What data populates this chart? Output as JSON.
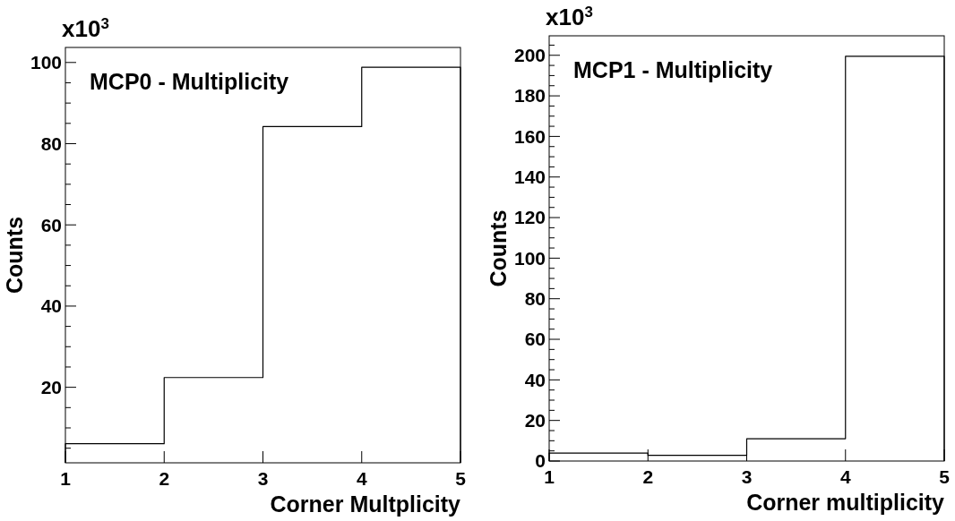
{
  "chart_data": [
    {
      "type": "histogram",
      "title": "MCP0 - Multiplicity",
      "xlabel": "Corner Multplicity",
      "ylabel": "Counts",
      "annotations": [
        "x10$^{3}$"
      ],
      "color": "#000000",
      "grid": false,
      "bins": [
        1,
        2,
        3,
        4,
        5
      ],
      "values": [
        6.1,
        22.4,
        84.2,
        98.8
      ],
      "xlim": [
        1,
        5
      ],
      "xticks": [
        1,
        2,
        3,
        4,
        5
      ],
      "ylim": [
        1.4,
        103.7
      ],
      "yticks": [
        {
          "value": 5,
          "label": null
        },
        {
          "value": 10,
          "label": null
        },
        {
          "value": 15,
          "label": null
        },
        20,
        {
          "value": 25,
          "label": null
        },
        {
          "value": 30,
          "label": null
        },
        {
          "value": 35,
          "label": null
        },
        40,
        {
          "value": 45,
          "label": null
        },
        {
          "value": 50,
          "label": null
        },
        {
          "value": 55,
          "label": null
        },
        60,
        {
          "value": 65,
          "label": null
        },
        {
          "value": 70,
          "label": null
        },
        {
          "value": 75,
          "label": null
        },
        80,
        {
          "value": 85,
          "label": null
        },
        {
          "value": 90,
          "label": null
        },
        {
          "value": 95,
          "label": null
        },
        100
      ]
    },
    {
      "type": "histogram",
      "title": "MCP1 - Multiplicity",
      "xlabel": "Corner multiplicity",
      "ylabel": "Counts",
      "annotations": [
        "x10$^{3}$"
      ],
      "color": "#000000",
      "grid": false,
      "bins": [
        1,
        2,
        3,
        4,
        5
      ],
      "values": [
        3.9,
        2.8,
        11.0,
        199.5
      ],
      "xlim": [
        1,
        5
      ],
      "xticks": [
        1,
        2,
        3,
        4,
        5
      ],
      "ylim": [
        0,
        209.6
      ],
      "yticks": [
        0,
        {
          "value": 5,
          "label": null
        },
        {
          "value": 10,
          "label": null
        },
        {
          "value": 15,
          "label": null
        },
        20,
        {
          "value": 25,
          "label": null
        },
        {
          "value": 30,
          "label": null
        },
        {
          "value": 35,
          "label": null
        },
        40,
        {
          "value": 45,
          "label": null
        },
        {
          "value": 50,
          "label": null
        },
        {
          "value": 55,
          "label": null
        },
        60,
        {
          "value": 65,
          "label": null
        },
        {
          "value": 70,
          "label": null
        },
        {
          "value": 75,
          "label": null
        },
        80,
        {
          "value": 85,
          "label": null
        },
        {
          "value": 90,
          "label": null
        },
        {
          "value": 95,
          "label": null
        },
        100,
        {
          "value": 105,
          "label": null
        },
        {
          "value": 110,
          "label": null
        },
        {
          "value": 115,
          "label": null
        },
        120,
        {
          "value": 125,
          "label": null
        },
        {
          "value": 130,
          "label": null
        },
        {
          "value": 135,
          "label": null
        },
        140,
        {
          "value": 145,
          "label": null
        },
        {
          "value": 150,
          "label": null
        },
        {
          "value": 155,
          "label": null
        },
        160,
        {
          "value": 165,
          "label": null
        },
        {
          "value": 170,
          "label": null
        },
        {
          "value": 175,
          "label": null
        },
        180,
        {
          "value": 185,
          "label": null
        },
        {
          "value": 190,
          "label": null
        },
        {
          "value": 195,
          "label": null
        },
        200,
        {
          "value": 205,
          "label": null
        }
      ]
    }
  ]
}
